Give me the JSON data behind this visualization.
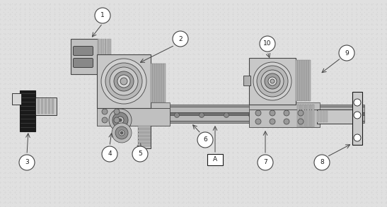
{
  "bg_color": "#e0e0e0",
  "dot_color": "#cccccc",
  "line_color": "#444444",
  "dark_color": "#1a1a1a",
  "mid_color": "#888888",
  "light_gray": "#c0c0c0",
  "figsize": [
    5.47,
    2.93
  ],
  "dpi": 100,
  "xlim": [
    0,
    547
  ],
  "ylim": [
    0,
    293
  ]
}
